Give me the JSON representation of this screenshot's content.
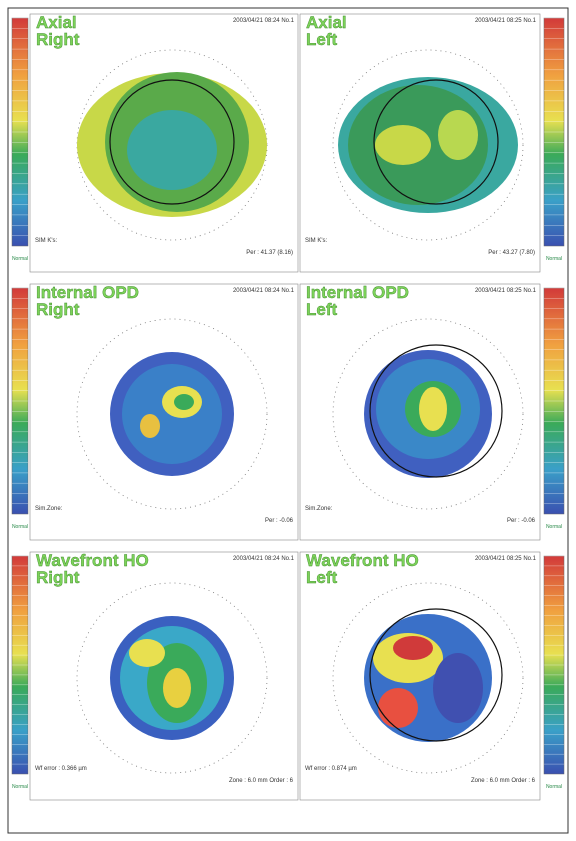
{
  "panels": [
    {
      "title": "Axial",
      "side": "Right",
      "timestamp": "2003/04/21 08:24 No.1",
      "notes": [
        "SIM K's:",
        "Per : 41.37 (8.16)"
      ]
    },
    {
      "title": "Axial",
      "side": "Left",
      "timestamp": "2003/04/21 08:25 No.1",
      "notes": [
        "SIM K's:",
        "Per : 43.27 (7.80)"
      ]
    },
    {
      "title": "Internal OPD",
      "side": "Right",
      "timestamp": "2003/04/21 08:24 No.1",
      "notes": [
        "Sim.Zone:",
        "Per : -0.06"
      ]
    },
    {
      "title": "Internal OPD",
      "side": "Left",
      "timestamp": "2003/04/21 08:25 No.1",
      "notes": [
        "Sim.Zone:",
        "Per : -0.06"
      ]
    },
    {
      "title": "Wavefront HO",
      "side": "Right",
      "timestamp": "2003/04/21 08:24 No.1",
      "notes": [
        "Wf error : 0.366 µm",
        "Zone : 6.0 mm Order : 6"
      ]
    },
    {
      "title": "Wavefront HO",
      "side": "Left",
      "timestamp": "2003/04/21 08:25 No.1",
      "notes": [
        "Wf error : 0.874 µm",
        "Zone : 6.0 mm Order : 6"
      ]
    }
  ],
  "scale_label": "Normal"
}
